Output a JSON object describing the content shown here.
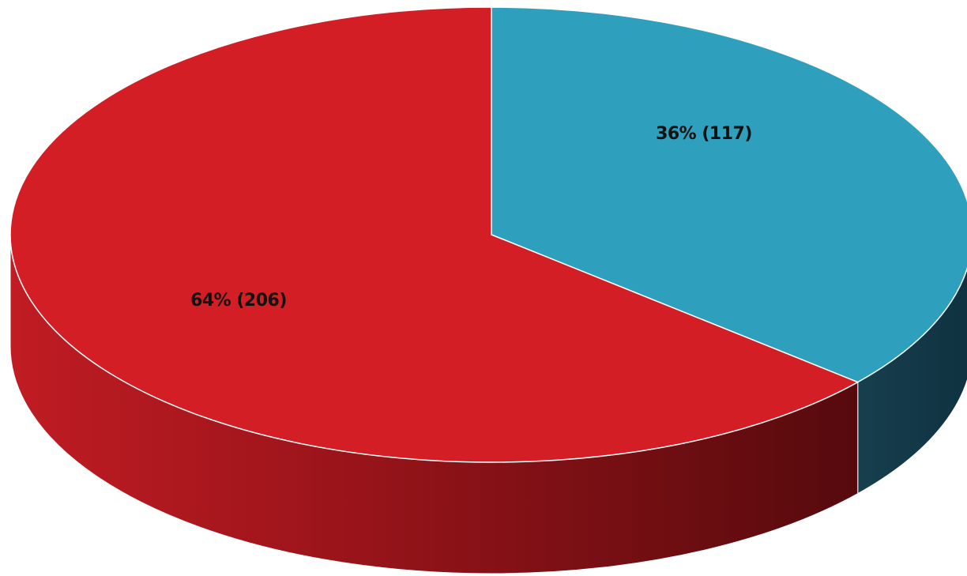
{
  "chart_data": {
    "type": "pie",
    "style": "3d",
    "slices": [
      {
        "value": 117,
        "percent": 36,
        "label": "36% (117)",
        "color": "#2e9fbd",
        "side_color": "#143e4d"
      },
      {
        "value": 206,
        "percent": 64,
        "label": "64% (206)",
        "color": "#d41e26",
        "side_color": "#7a1015"
      }
    ],
    "title": "",
    "legend": "none"
  }
}
